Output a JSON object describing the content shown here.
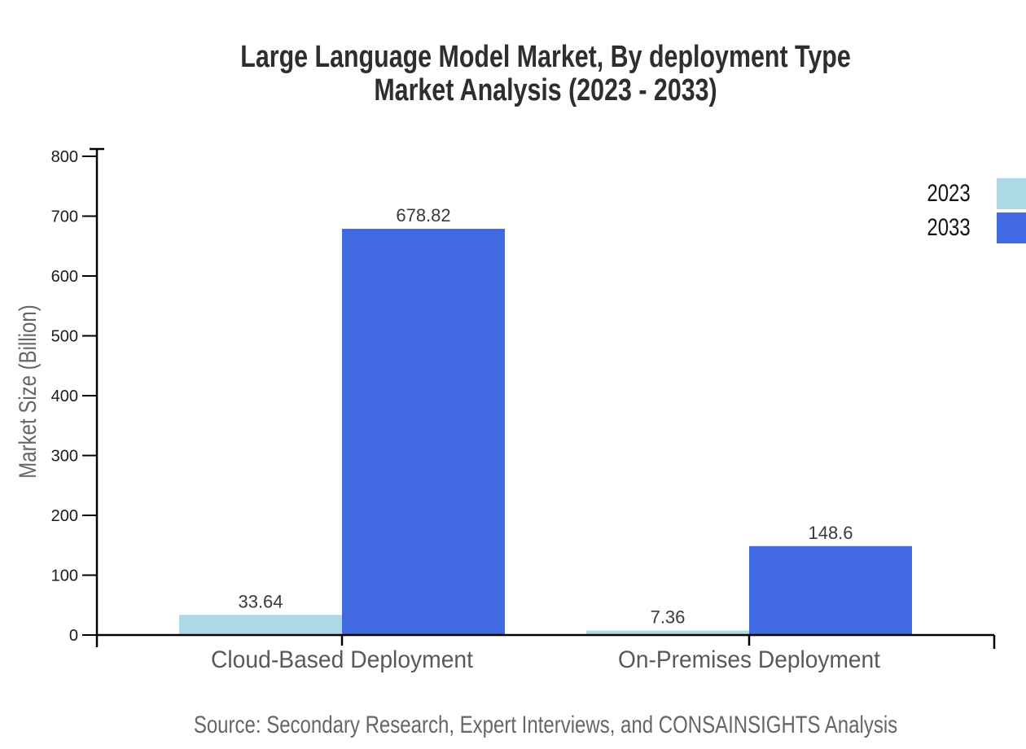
{
  "header": {
    "title_line1": "Large Language Model Market, By deployment Type",
    "title_line2": "Market Analysis (2023 - 2033)"
  },
  "source_note": "Source: Secondary Research, Expert Interviews, and CONSAINSIGHTS Analysis",
  "chart_data": {
    "type": "bar",
    "title": "Large Language Model Market, By deployment Type Market Analysis (2023 - 2033)",
    "categories": [
      "Cloud-Based Deployment",
      "On-Premises Deployment"
    ],
    "series": [
      {
        "name": "2023",
        "color": "#ADD8E6",
        "values": [
          33.64,
          7.36
        ]
      },
      {
        "name": "2033",
        "color": "#4169E1",
        "values": [
          678.82,
          148.6
        ]
      }
    ],
    "xlabel": "",
    "ylabel": "Market Size (Billion)",
    "ylim": [
      0,
      800
    ],
    "yticks": [
      0,
      100,
      200,
      300,
      400,
      500,
      600,
      700,
      800
    ],
    "grid": false,
    "show_value_labels": true,
    "value_labels": [
      [
        "33.64",
        "7.36"
      ],
      [
        "678.82",
        "148.6"
      ]
    ],
    "legend_position": "top-right"
  },
  "colors": {
    "series_2023": "#ADD8E6",
    "series_2033": "#4169E1",
    "axis": "#000000",
    "tick_label": "#1c1c1c",
    "value_label": "#3a3a3a",
    "category_label": "#595959",
    "axis_title": "#666666",
    "title": "#2e2e2e",
    "source": "#666666",
    "background": "#ffffff"
  }
}
